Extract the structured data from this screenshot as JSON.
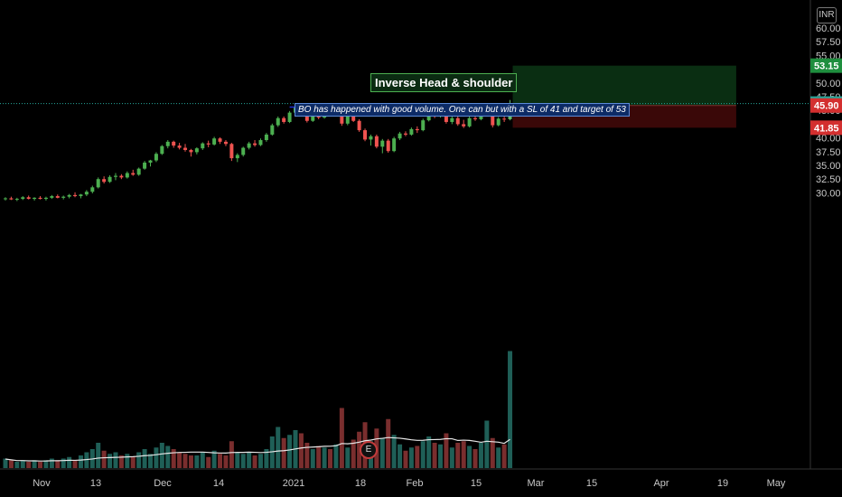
{
  "currency_label": "INR",
  "earnings_marker": "E",
  "annotations": {
    "title": "Inverse Head & shoulder",
    "note": "BO has happened with good volume. One can but with a SL of 41 and target of 53"
  },
  "colors": {
    "up": "#26a69a",
    "up_bright": "#4caf50",
    "down": "#ef5350",
    "target_zone": "#0a2e12",
    "stop_zone": "#3a0808",
    "neckline": "#2130d6",
    "price_line": "#26a69a"
  },
  "price_labels": [
    {
      "value": "53.15",
      "color": "#1e8e3e"
    },
    {
      "value": "46.25",
      "color": "#26a69a"
    },
    {
      "value": "45.90",
      "color": "#d32f2f"
    },
    {
      "value": "41.85",
      "color": "#d32f2f"
    }
  ],
  "chart_data": {
    "type": "candlestick",
    "y_axis": {
      "range": [
        27.5,
        61
      ],
      "ticks": [
        "30.00",
        "32.50",
        "35.00",
        "37.50",
        "40.00",
        "42.50",
        "45.00",
        "47.50",
        "50.00",
        "52.50",
        "55.00",
        "57.50",
        "60.00"
      ]
    },
    "x_axis": {
      "ticks": [
        "Nov",
        "13",
        "Dec",
        "14",
        "2021",
        "18",
        "Feb",
        "15",
        "Mar",
        "15",
        "Apr",
        "19",
        "May"
      ]
    },
    "candles": [
      [
        28.9,
        29.2,
        28.6,
        29.0
      ],
      [
        29.0,
        29.3,
        28.7,
        28.8
      ],
      [
        28.8,
        29.1,
        28.5,
        28.9
      ],
      [
        28.9,
        29.4,
        28.7,
        29.2
      ],
      [
        29.2,
        29.5,
        28.8,
        28.9
      ],
      [
        28.9,
        29.2,
        28.6,
        29.1
      ],
      [
        29.1,
        29.4,
        28.8,
        28.9
      ],
      [
        28.9,
        29.3,
        28.6,
        29.1
      ],
      [
        29.1,
        29.6,
        28.9,
        29.4
      ],
      [
        29.4,
        29.7,
        29.0,
        29.1
      ],
      [
        29.1,
        29.5,
        28.8,
        29.3
      ],
      [
        29.3,
        29.8,
        29.0,
        29.6
      ],
      [
        29.6,
        30.1,
        29.2,
        29.4
      ],
      [
        29.4,
        29.8,
        29.0,
        29.7
      ],
      [
        29.7,
        30.5,
        29.4,
        30.2
      ],
      [
        30.2,
        31.3,
        29.9,
        31.0
      ],
      [
        31.0,
        32.8,
        30.8,
        32.5
      ],
      [
        32.5,
        33.0,
        31.7,
        32.0
      ],
      [
        32.0,
        33.2,
        31.8,
        32.9
      ],
      [
        32.9,
        33.6,
        32.3,
        33.1
      ],
      [
        33.1,
        33.4,
        32.5,
        32.8
      ],
      [
        32.8,
        33.9,
        32.6,
        33.6
      ],
      [
        33.6,
        34.2,
        33.1,
        33.3
      ],
      [
        33.3,
        34.6,
        33.1,
        34.4
      ],
      [
        34.4,
        35.8,
        34.2,
        35.5
      ],
      [
        35.5,
        36.0,
        34.8,
        35.9
      ],
      [
        35.9,
        37.4,
        35.6,
        37.1
      ],
      [
        37.1,
        38.7,
        36.9,
        38.5
      ],
      [
        38.5,
        39.6,
        38.1,
        39.3
      ],
      [
        39.3,
        39.5,
        38.2,
        38.6
      ],
      [
        38.6,
        39.1,
        37.9,
        38.2
      ],
      [
        38.2,
        38.9,
        37.5,
        37.8
      ],
      [
        37.8,
        38.0,
        36.6,
        37.4
      ],
      [
        37.4,
        38.3,
        37.0,
        38.1
      ],
      [
        38.1,
        39.2,
        37.8,
        39.0
      ],
      [
        39.0,
        39.5,
        38.3,
        38.8
      ],
      [
        38.8,
        40.2,
        38.6,
        39.9
      ],
      [
        39.9,
        40.1,
        38.9,
        39.3
      ],
      [
        39.3,
        39.6,
        38.5,
        38.9
      ],
      [
        38.9,
        39.1,
        35.8,
        36.3
      ],
      [
        36.3,
        37.2,
        35.6,
        36.9
      ],
      [
        36.9,
        38.4,
        36.6,
        38.2
      ],
      [
        38.2,
        39.3,
        37.9,
        39.0
      ],
      [
        39.0,
        39.6,
        38.4,
        38.7
      ],
      [
        38.7,
        39.9,
        38.5,
        39.6
      ],
      [
        39.6,
        40.9,
        39.3,
        40.6
      ],
      [
        40.6,
        42.6,
        40.4,
        42.3
      ],
      [
        42.3,
        43.9,
        42.0,
        43.6
      ],
      [
        43.6,
        43.9,
        42.6,
        42.9
      ],
      [
        42.9,
        44.9,
        42.7,
        44.6
      ],
      [
        44.6,
        45.9,
        44.3,
        45.6
      ],
      [
        45.6,
        45.9,
        43.9,
        44.2
      ],
      [
        44.2,
        44.5,
        42.8,
        43.1
      ],
      [
        43.1,
        44.3,
        42.9,
        44.0
      ],
      [
        44.0,
        44.9,
        43.4,
        43.7
      ],
      [
        43.7,
        45.2,
        43.5,
        44.9
      ],
      [
        44.9,
        45.4,
        43.9,
        44.2
      ],
      [
        44.2,
        45.5,
        44.0,
        45.2
      ],
      [
        45.2,
        45.5,
        42.2,
        42.6
      ],
      [
        42.6,
        44.8,
        42.3,
        44.5
      ],
      [
        44.5,
        44.8,
        42.9,
        43.1
      ],
      [
        43.1,
        43.4,
        41.1,
        41.4
      ],
      [
        41.4,
        41.7,
        39.4,
        39.7
      ],
      [
        39.7,
        40.6,
        38.6,
        40.3
      ],
      [
        40.3,
        40.6,
        38.1,
        38.4
      ],
      [
        38.4,
        39.8,
        37.2,
        39.5
      ],
      [
        39.5,
        39.8,
        37.3,
        37.6
      ],
      [
        37.6,
        40.2,
        37.4,
        39.9
      ],
      [
        39.9,
        41.1,
        39.6,
        40.8
      ],
      [
        40.8,
        41.2,
        40.3,
        40.6
      ],
      [
        40.6,
        41.9,
        40.4,
        41.6
      ],
      [
        41.6,
        42.1,
        40.9,
        41.4
      ],
      [
        41.4,
        43.5,
        41.2,
        43.2
      ],
      [
        43.2,
        44.9,
        43.0,
        44.6
      ],
      [
        44.6,
        44.9,
        43.6,
        44.0
      ],
      [
        44.0,
        45.2,
        43.7,
        44.9
      ],
      [
        44.9,
        45.2,
        42.6,
        42.9
      ],
      [
        42.9,
        43.9,
        42.5,
        43.6
      ],
      [
        43.6,
        43.9,
        42.2,
        42.5
      ],
      [
        42.5,
        43.3,
        41.8,
        42.1
      ],
      [
        42.1,
        43.9,
        41.9,
        43.6
      ],
      [
        43.6,
        44.2,
        43.1,
        43.4
      ],
      [
        43.4,
        44.7,
        43.2,
        44.4
      ],
      [
        44.4,
        45.4,
        44.1,
        45.1
      ],
      [
        45.1,
        45.4,
        41.9,
        42.3
      ],
      [
        42.3,
        43.8,
        42.1,
        43.5
      ],
      [
        43.5,
        44.2,
        42.9,
        43.4
      ],
      [
        43.4,
        46.9,
        43.2,
        46.25
      ]
    ],
    "volume": [
      0.06,
      0.05,
      0.04,
      0.05,
      0.04,
      0.05,
      0.04,
      0.05,
      0.06,
      0.05,
      0.06,
      0.07,
      0.05,
      0.08,
      0.1,
      0.12,
      0.16,
      0.11,
      0.09,
      0.1,
      0.08,
      0.09,
      0.07,
      0.1,
      0.12,
      0.09,
      0.13,
      0.16,
      0.14,
      0.12,
      0.1,
      0.09,
      0.08,
      0.08,
      0.1,
      0.07,
      0.11,
      0.09,
      0.08,
      0.17,
      0.1,
      0.09,
      0.1,
      0.08,
      0.09,
      0.12,
      0.2,
      0.26,
      0.19,
      0.21,
      0.24,
      0.22,
      0.16,
      0.12,
      0.14,
      0.13,
      0.12,
      0.15,
      0.38,
      0.13,
      0.18,
      0.23,
      0.29,
      0.17,
      0.25,
      0.19,
      0.31,
      0.21,
      0.15,
      0.11,
      0.13,
      0.14,
      0.17,
      0.2,
      0.16,
      0.15,
      0.22,
      0.13,
      0.16,
      0.17,
      0.14,
      0.12,
      0.16,
      0.3,
      0.19,
      0.13,
      0.15,
      0.74
    ],
    "neckline": {
      "value": 45.6,
      "from_index": 49,
      "to_index": 87
    },
    "trade": {
      "entry": 45.9,
      "target": 53.15,
      "stop": 41.85,
      "last": 46.25,
      "zone_start_index": 87,
      "zone_end_index": 126
    }
  }
}
